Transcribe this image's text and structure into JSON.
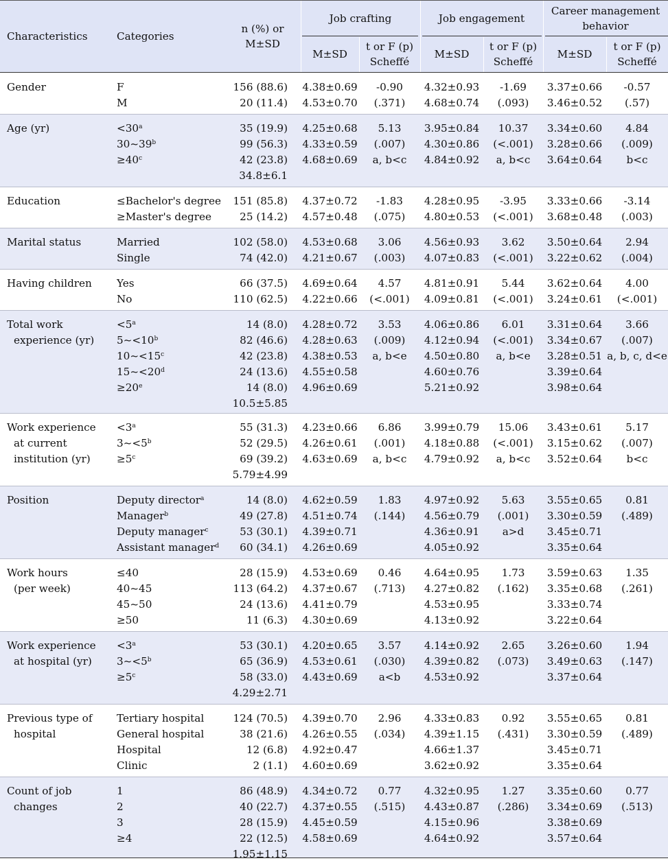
{
  "header": {
    "characteristics": "Characteristics",
    "categories": "Categories",
    "n_pct_1": "n (%) or",
    "n_pct_2": "M±SD",
    "job_crafting": "Job crafting",
    "job_engagement": "Job engagement",
    "career_1": "Career management",
    "career_2": "behavior",
    "msd": "M±SD",
    "test_1": "t or F (p)",
    "test_2": "Scheffé"
  },
  "rows": [
    {
      "char": [
        "Gender"
      ],
      "cats": [
        [
          "F",
          ""
        ],
        [
          "M",
          ""
        ]
      ],
      "n": [
        "156 (88.6)",
        "20 (11.4)"
      ],
      "jc": [
        "4.38±0.69",
        "4.53±0.70"
      ],
      "jct": [
        "-0.90",
        "(.371)"
      ],
      "je": [
        "4.32±0.93",
        "4.68±0.74"
      ],
      "jet": [
        "-1.69",
        "(.093)"
      ],
      "cm": [
        "3.37±0.66",
        "3.46±0.52"
      ],
      "cmt": [
        "-0.57",
        "(.57)"
      ]
    },
    {
      "char": [
        "Age (yr)"
      ],
      "cats": [
        [
          "<30",
          "a"
        ],
        [
          "30~39",
          "b"
        ],
        [
          "≥40",
          "c"
        ]
      ],
      "n": [
        "35 (19.9)",
        "99 (56.3)",
        "42 (23.8)",
        "34.8±6.1"
      ],
      "jc": [
        "4.25±0.68",
        "4.33±0.59",
        "4.68±0.69"
      ],
      "jct": [
        "5.13",
        "(.007)",
        "a, b<c"
      ],
      "je": [
        "3.95±0.84",
        "4.30±0.86",
        "4.84±0.92"
      ],
      "jet": [
        "10.37",
        "(<.001)",
        "a, b<c"
      ],
      "cm": [
        "3.34±0.60",
        "3.28±0.66",
        "3.64±0.64"
      ],
      "cmt": [
        "4.84",
        "(.009)",
        "b<c"
      ]
    },
    {
      "char": [
        "Education"
      ],
      "cats": [
        [
          "≤Bachelor's degree",
          ""
        ],
        [
          "≥Master's degree",
          ""
        ]
      ],
      "n": [
        "151 (85.8)",
        "25 (14.2)"
      ],
      "jc": [
        "4.37±0.72",
        "4.57±0.48"
      ],
      "jct": [
        "-1.83",
        "(.075)"
      ],
      "je": [
        "4.28±0.95",
        "4.80±0.53"
      ],
      "jet": [
        "-3.95",
        "(<.001)"
      ],
      "cm": [
        "3.33±0.66",
        "3.68±0.48"
      ],
      "cmt": [
        "-3.14",
        "(.003)"
      ]
    },
    {
      "char": [
        "Marital status"
      ],
      "cats": [
        [
          "Married",
          ""
        ],
        [
          "Single",
          ""
        ]
      ],
      "n": [
        "102 (58.0)",
        "74 (42.0)"
      ],
      "jc": [
        "4.53±0.68",
        "4.21±0.67"
      ],
      "jct": [
        "3.06",
        "(.003)"
      ],
      "je": [
        "4.56±0.93",
        "4.07±0.83"
      ],
      "jet": [
        "3.62",
        "(<.001)"
      ],
      "cm": [
        "3.50±0.64",
        "3.22±0.62"
      ],
      "cmt": [
        "2.94",
        "(.004)"
      ]
    },
    {
      "char": [
        "Having children"
      ],
      "cats": [
        [
          "Yes",
          ""
        ],
        [
          "No",
          ""
        ]
      ],
      "n": [
        "66 (37.5)",
        "110 (62.5)"
      ],
      "jc": [
        "4.69±0.64",
        "4.22±0.66"
      ],
      "jct": [
        "4.57",
        "(<.001)"
      ],
      "je": [
        "4.81±0.91",
        "4.09±0.81"
      ],
      "jet": [
        "5.44",
        "(<.001)"
      ],
      "cm": [
        "3.62±0.64",
        "3.24±0.61"
      ],
      "cmt": [
        "4.00",
        "(<.001)"
      ]
    },
    {
      "char": [
        "Total work",
        "experience (yr)"
      ],
      "cats": [
        [
          "<5",
          "a"
        ],
        [
          "5~<10",
          "b"
        ],
        [
          "10~<15",
          "c"
        ],
        [
          "15~<20",
          "d"
        ],
        [
          "≥20",
          "e"
        ]
      ],
      "n": [
        "14 (8.0)",
        "82 (46.6)",
        "42 (23.8)",
        "24 (13.6)",
        "14 (8.0)",
        "10.5±5.85"
      ],
      "jc": [
        "4.28±0.72",
        "4.28±0.63",
        "4.38±0.53",
        "4.55±0.58",
        "4.96±0.69"
      ],
      "jct": [
        "3.53",
        "(.009)",
        "a, b<e"
      ],
      "je": [
        "4.06±0.86",
        "4.12±0.94",
        "4.50±0.80",
        "4.60±0.76",
        "5.21±0.92"
      ],
      "jet": [
        "6.01",
        "(<.001)",
        "a, b<e"
      ],
      "cm": [
        "3.31±0.64",
        "3.34±0.67",
        "3.28±0.51",
        "3.39±0.64",
        "3.98±0.64"
      ],
      "cmt": [
        "3.66",
        "(.007)",
        "a, b, c, d<e"
      ]
    },
    {
      "char": [
        "Work experience",
        "at current",
        "institution (yr)"
      ],
      "cats": [
        [
          "<3",
          "a"
        ],
        [
          "3~<5",
          "b"
        ],
        [
          "≥5",
          "c"
        ]
      ],
      "n": [
        "55 (31.3)",
        "52 (29.5)",
        "69 (39.2)",
        "5.79±4.99"
      ],
      "jc": [
        "4.23±0.66",
        "4.26±0.61",
        "4.63±0.69"
      ],
      "jct": [
        "6.86",
        "(.001)",
        "a, b<c"
      ],
      "je": [
        "3.99±0.79",
        "4.18±0.88",
        "4.79±0.92"
      ],
      "jet": [
        "15.06",
        "(<.001)",
        "a, b<c"
      ],
      "cm": [
        "3.43±0.61",
        "3.15±0.62",
        "3.52±0.64"
      ],
      "cmt": [
        "5.17",
        "(.007)",
        "b<c"
      ]
    },
    {
      "char": [
        "Position"
      ],
      "cats": [
        [
          "Deputy director",
          "a"
        ],
        [
          "Manager",
          "b"
        ],
        [
          "Deputy manager",
          "c"
        ],
        [
          "Assistant manager",
          "d"
        ]
      ],
      "n": [
        "14 (8.0)",
        "49 (27.8)",
        "53 (30.1)",
        "60 (34.1)"
      ],
      "jc": [
        "4.62±0.59",
        "4.51±0.74",
        "4.39±0.71",
        "4.26±0.69"
      ],
      "jct": [
        "1.83",
        "(.144)"
      ],
      "je": [
        "4.97±0.92",
        "4.56±0.79",
        "4.36±0.91",
        "4.05±0.92"
      ],
      "jet": [
        "5.63",
        "(.001)",
        "a>d"
      ],
      "cm": [
        "3.55±0.65",
        "3.30±0.59",
        "3.45±0.71",
        "3.35±0.64"
      ],
      "cmt": [
        "0.81",
        "(.489)"
      ]
    },
    {
      "char": [
        "Work hours",
        "(per week)"
      ],
      "cats": [
        [
          "≤40",
          ""
        ],
        [
          "40~45",
          ""
        ],
        [
          "45~50",
          ""
        ],
        [
          "≥50",
          ""
        ]
      ],
      "n": [
        "28 (15.9)",
        "113 (64.2)",
        "24 (13.6)",
        "11 (6.3)"
      ],
      "jc": [
        "4.53±0.69",
        "4.37±0.67",
        "4.41±0.79",
        "4.30±0.69"
      ],
      "jct": [
        "0.46",
        "(.713)"
      ],
      "je": [
        "4.64±0.95",
        "4.27±0.82",
        "4.53±0.95",
        "4.13±0.92"
      ],
      "jet": [
        "1.73",
        "(.162)"
      ],
      "cm": [
        "3.59±0.63",
        "3.35±0.68",
        "3.33±0.74",
        "3.22±0.64"
      ],
      "cmt": [
        "1.35",
        "(.261)"
      ]
    },
    {
      "char": [
        "Work experience",
        "at hospital (yr)"
      ],
      "cats": [
        [
          "<3",
          "a"
        ],
        [
          "3~<5",
          "b"
        ],
        [
          "≥5",
          "c"
        ]
      ],
      "n": [
        "53 (30.1)",
        "65 (36.9)",
        "58 (33.0)",
        "4.29±2.71"
      ],
      "jc": [
        "4.20±0.65",
        "4.53±0.61",
        "4.43±0.69"
      ],
      "jct": [
        "3.57",
        "(.030)",
        "a<b"
      ],
      "je": [
        "4.14±0.92",
        "4.39±0.82",
        "4.53±0.92"
      ],
      "jet": [
        "2.65",
        "(.073)"
      ],
      "cm": [
        "3.26±0.60",
        "3.49±0.63",
        "3.37±0.64"
      ],
      "cmt": [
        "1.94",
        "(.147)"
      ]
    },
    {
      "char": [
        "Previous type of",
        "hospital"
      ],
      "cats": [
        [
          "Tertiary hospital",
          ""
        ],
        [
          "General hospital",
          ""
        ],
        [
          "Hospital",
          ""
        ],
        [
          "Clinic",
          ""
        ]
      ],
      "n": [
        "124 (70.5)",
        "38 (21.6)",
        "12 (6.8)",
        "2 (1.1)"
      ],
      "jc": [
        "4.39±0.70",
        "4.26±0.55",
        "4.92±0.47",
        "4.60±0.69"
      ],
      "jct": [
        "2.96",
        "(.034)"
      ],
      "je": [
        "4.33±0.83",
        "4.39±1.15",
        "4.66±1.37",
        "3.62±0.92"
      ],
      "jet": [
        "0.92",
        "(.431)"
      ],
      "cm": [
        "3.55±0.65",
        "3.30±0.59",
        "3.45±0.71",
        "3.35±0.64"
      ],
      "cmt": [
        "0.81",
        "(.489)"
      ]
    },
    {
      "char": [
        "Count of job",
        "changes"
      ],
      "cats": [
        [
          "1",
          ""
        ],
        [
          "2",
          ""
        ],
        [
          "3",
          ""
        ],
        [
          "≥4",
          ""
        ]
      ],
      "n": [
        "86 (48.9)",
        "40 (22.7)",
        "28 (15.9)",
        "22 (12.5)",
        "1.95±1.15"
      ],
      "jc": [
        "4.34±0.72",
        "4.37±0.55",
        "4.45±0.59",
        "4.58±0.69"
      ],
      "jct": [
        "0.77",
        "(.515)"
      ],
      "je": [
        "4.32±0.95",
        "4.43±0.87",
        "4.15±0.96",
        "4.64±0.92"
      ],
      "jet": [
        "1.27",
        "(.286)"
      ],
      "cm": [
        "3.35±0.60",
        "3.34±0.69",
        "3.38±0.69",
        "3.57±0.64"
      ],
      "cmt": [
        "0.77",
        "(.513)"
      ]
    }
  ]
}
